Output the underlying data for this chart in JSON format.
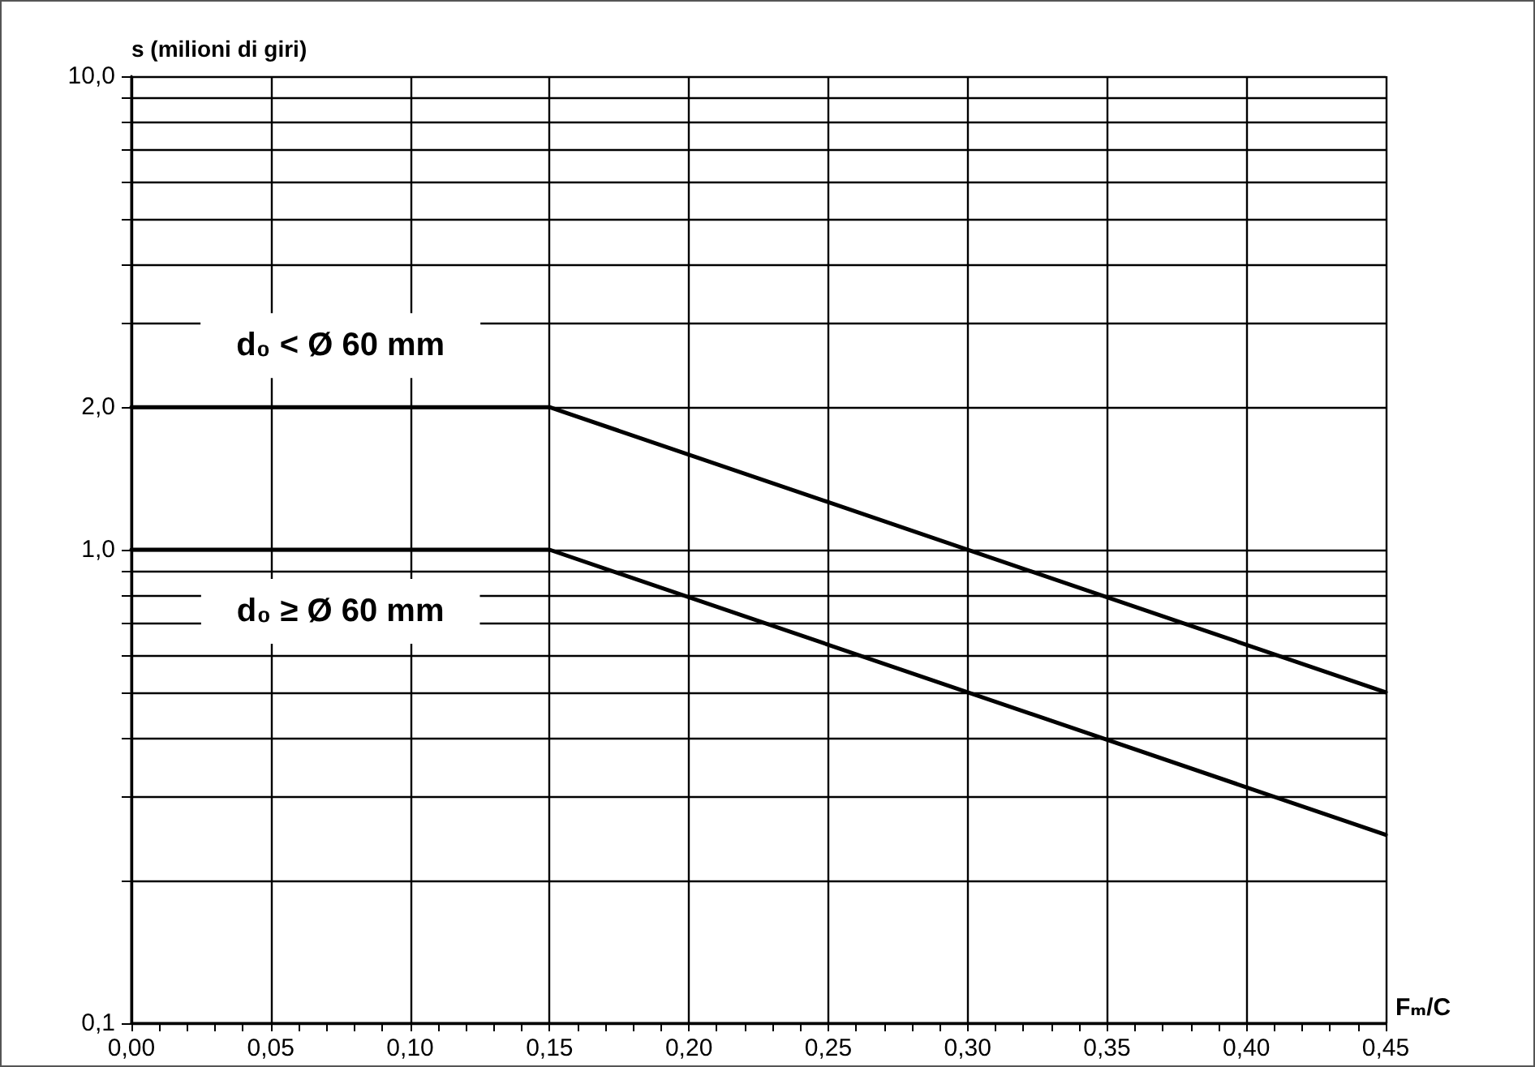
{
  "chart_data": {
    "type": "line",
    "ylabel": "s (milioni di giri)",
    "xlabel": "Fₘ/C",
    "x": [
      0,
      0.15,
      0.45
    ],
    "series": [
      {
        "color": "#000000",
        "values": [
          2,
          2,
          0.5
        ]
      },
      {
        "color": "#000000",
        "values": [
          1,
          1,
          0.25
        ]
      }
    ],
    "annotations": [
      "d₀ < Ø 60 mm",
      "d₀ ≥ Ø 60 mm"
    ],
    "log": "y",
    "xlim": [
      0,
      0.45
    ],
    "ylim": [
      0.1,
      10
    ],
    "xticks": [
      {
        "value": 0,
        "label": "0,00"
      },
      {
        "value": 0.01,
        "label": null
      },
      {
        "value": 0.02,
        "label": null
      },
      {
        "value": 0.03,
        "label": null
      },
      {
        "value": 0.04,
        "label": null
      },
      {
        "value": 0.05,
        "label": "0,05"
      },
      {
        "value": 0.06,
        "label": null
      },
      {
        "value": 0.07,
        "label": null
      },
      {
        "value": 0.08,
        "label": null
      },
      {
        "value": 0.09,
        "label": null
      },
      {
        "value": 0.1,
        "label": "0,10"
      },
      {
        "value": 0.11,
        "label": null
      },
      {
        "value": 0.12,
        "label": null
      },
      {
        "value": 0.13,
        "label": null
      },
      {
        "value": 0.14,
        "label": null
      },
      {
        "value": 0.15,
        "label": "0,15"
      },
      {
        "value": 0.16,
        "label": null
      },
      {
        "value": 0.17,
        "label": null
      },
      {
        "value": 0.18,
        "label": null
      },
      {
        "value": 0.19,
        "label": null
      },
      {
        "value": 0.2,
        "label": "0,20"
      },
      {
        "value": 0.21,
        "label": null
      },
      {
        "value": 0.22,
        "label": null
      },
      {
        "value": 0.23,
        "label": null
      },
      {
        "value": 0.24,
        "label": null
      },
      {
        "value": 0.25,
        "label": "0,25"
      },
      {
        "value": 0.26,
        "label": null
      },
      {
        "value": 0.27,
        "label": null
      },
      {
        "value": 0.28,
        "label": null
      },
      {
        "value": 0.29,
        "label": null
      },
      {
        "value": 0.3,
        "label": "0,30"
      },
      {
        "value": 0.31,
        "label": null
      },
      {
        "value": 0.32,
        "label": null
      },
      {
        "value": 0.33,
        "label": null
      },
      {
        "value": 0.34,
        "label": null
      },
      {
        "value": 0.35,
        "label": "0,35"
      },
      {
        "value": 0.36,
        "label": null
      },
      {
        "value": 0.37,
        "label": null
      },
      {
        "value": 0.38,
        "label": null
      },
      {
        "value": 0.39,
        "label": null
      },
      {
        "value": 0.4,
        "label": "0,40"
      },
      {
        "value": 0.41,
        "label": null
      },
      {
        "value": 0.42,
        "label": null
      },
      {
        "value": 0.43,
        "label": null
      },
      {
        "value": 0.44,
        "label": null
      },
      {
        "value": 0.45,
        "label": "0,45"
      }
    ],
    "yticks": [
      {
        "value": 0.1,
        "label": "0,1"
      },
      {
        "value": 0.2,
        "label": null
      },
      {
        "value": 0.3,
        "label": null
      },
      {
        "value": 0.4,
        "label": null
      },
      {
        "value": 0.5,
        "label": null
      },
      {
        "value": 0.6,
        "label": null
      },
      {
        "value": 0.7,
        "label": null
      },
      {
        "value": 0.8,
        "label": null
      },
      {
        "value": 0.9,
        "label": null
      },
      {
        "value": 1,
        "label": "1,0"
      },
      {
        "value": 2,
        "label": "2,0"
      },
      {
        "value": 3,
        "label": null
      },
      {
        "value": 4,
        "label": null
      },
      {
        "value": 5,
        "label": null
      },
      {
        "value": 6,
        "label": null
      },
      {
        "value": 7,
        "label": null
      },
      {
        "value": 8,
        "label": null
      },
      {
        "value": 9,
        "label": null
      },
      {
        "value": 10,
        "label": "10,0"
      }
    ],
    "grid": true,
    "marker": "none",
    "line_style": "solid"
  }
}
